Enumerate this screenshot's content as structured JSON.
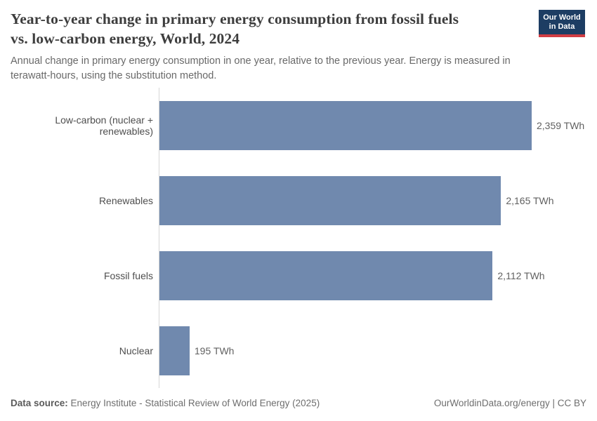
{
  "header": {
    "title": "Year-to-year change in primary energy consumption from fossil fuels\nvs. low-carbon energy, World, 2024",
    "subtitle": "Annual change in primary energy consumption in one year, relative to the previous year. Energy is measured in\nterawatt-hours, using the substitution method.",
    "logo": {
      "line1": "Our World",
      "line2": "in Data"
    }
  },
  "chart_data": {
    "type": "bar",
    "orientation": "horizontal",
    "title": "Year-to-year change in primary energy consumption from fossil fuels vs. low-carbon energy, World, 2024",
    "categories": [
      "Low-carbon (nuclear + renewables)",
      "Renewables",
      "Fossil fuels",
      "Nuclear"
    ],
    "values": [
      2359,
      2165,
      2112,
      195
    ],
    "value_labels": [
      "2,359 TWh",
      "2,165 TWh",
      "2,112 TWh",
      "195 TWh"
    ],
    "unit": "TWh",
    "xlim": [
      0,
      2359
    ],
    "grid": false,
    "legend": "none",
    "bar_color": "#7089ae"
  },
  "colors": {
    "bar": "#7089ae",
    "axis_line": "#d6d6d6",
    "title_text": "#3d3d3d",
    "subtitle_text": "#696969",
    "label_text": "#4e4e4e",
    "value_text": "#616161",
    "logo_background": "#1d3d63",
    "logo_accent": "#d13d43"
  },
  "footer": {
    "source_label": "Data source:",
    "source_text": "Energy Institute - Statistical Review of World Energy (2025)",
    "credit": "OurWorldinData.org/energy | CC BY"
  }
}
